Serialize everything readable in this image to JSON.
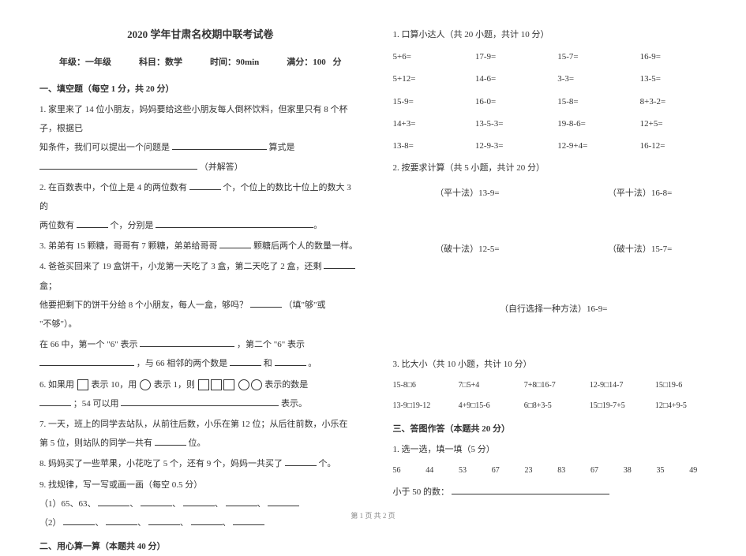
{
  "title": "2020 学年甘肃名校期中联考试卷",
  "meta": {
    "grade_label": "年级：",
    "grade": "一年级",
    "subject_label": "科目：",
    "subject": "数学",
    "time_label": "时间：",
    "time": "90min",
    "full_label": "满分：",
    "full": "100 分"
  },
  "sec1_header": "一、填空题（每空 1 分，共 20 分）",
  "q1": {
    "a": "1. 家里来了 14 位小朋友，妈妈要给这些小朋友每人倒杯饮料，但家里只有 8 个杯子，根据已",
    "b": "知条件，我们可以提出一个问题是",
    "c": "算式是",
    "d": "（并解答）"
  },
  "q2": {
    "a": "2. 在百数表中，个位上是 4 的两位数有",
    "b": "个，个位上的数比十位上的数大 3 的",
    "c": "两位数有",
    "d": "个，分别是"
  },
  "q3": {
    "a": "3. 弟弟有 15 颗糖，哥哥有 7 颗糖，弟弟给哥哥",
    "b": "颗糖后两个人的数量一样。"
  },
  "q4": {
    "a": "4. 爸爸买回来了 19 盒饼干，小龙第一天吃了 3 盒，第二天吃了 2 盒，还剩",
    "b": "盒；",
    "c": "他要把剩下的饼干分给  8 个小朋友，每人一盒，够吗？",
    "d": "（填\"够\"或",
    "e": "\"不够\"）。"
  },
  "q5": {
    "a": "在 66 中，第一个 \"6\" 表示",
    "b": "，第二个 \"6\" 表示",
    "c": "，与 66 相邻的两个数是",
    "d": "和",
    "e": "。"
  },
  "q6": {
    "a": "6. 如果用",
    "b": "表示 10，用",
    "c": "表示 1，则",
    "d": "表示的数是",
    "e": "；54 可以用",
    "f": "表示。"
  },
  "q7": {
    "a": "7. 一天，班上的同学去站队，从前往后数，小乐在第 12 位；从后往前数，小乐在",
    "b": "第 5 位，则站队的同学一共有",
    "c": "位。"
  },
  "q8": {
    "a": "8. 妈妈买了一些苹果，小花吃了 5 个，还有 9 个，妈妈一共买了",
    "b": "个。"
  },
  "q9": {
    "a": "9. 找规律，写一写或画一画（每空 0.5 分）",
    "b": "（1）65、63、",
    "c": "、",
    "d": "、",
    "e": "、",
    "f": "、",
    "g": "（2）",
    "h": "、",
    "i": "、",
    "j": "、",
    "k": "、"
  },
  "sec2_header": "二、用心算一算（本题共 40 分）",
  "r1_header": "1. 口算小达人（共 20 小题，共计 10 分）",
  "r1": [
    "5+6=",
    "17-9=",
    "15-7=",
    "16-9=",
    "5+12=",
    "14-6=",
    "3-3=",
    "13-5=",
    "15-9=",
    "16-0=",
    "15-8=",
    "8+3-2=",
    "14+3=",
    "13-5-3=",
    "19-8-6=",
    "12+5=",
    "13-8=",
    "12-9-3=",
    "12-9+4=",
    "16-12="
  ],
  "r2_header": "2. 按要求计算（共 5 小题，共计 20 分）",
  "r2": {
    "a": "（平十法）13-9=",
    "b": "（平十法）16-8=",
    "c": "（破十法）12-5=",
    "d": "（破十法）15-7=",
    "e": "（自行选择一种方法）16-9="
  },
  "r3_header": "3. 比大小（共 10 小题，共计 10 分）",
  "r3": [
    "15-8□6",
    "7□5+4",
    "7+8□16-7",
    "12-9□14-7",
    "15□19-6",
    "13-9□19-12",
    "4+9□15-6",
    "6□8+3-5",
    "15□19-7+5",
    "12□4+9-5"
  ],
  "sec3_header": "三、答图作答（本题共 20 分）",
  "s1_header": "1. 选一选，填一填（5 分）",
  "s1_nums": [
    "56",
    "44",
    "53",
    "67",
    "23",
    "83",
    "67",
    "38",
    "35",
    "49"
  ],
  "s1_q": "小于 50 的数：",
  "footer": "第 1 页 共 2 页"
}
